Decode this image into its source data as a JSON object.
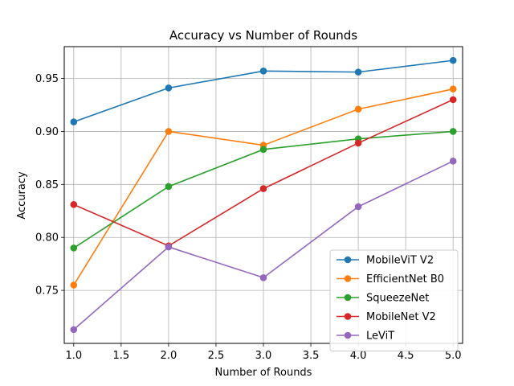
{
  "chart_data": {
    "type": "line",
    "title": "Accuracy vs Number of Rounds",
    "xlabel": "Number of Rounds",
    "ylabel": "Accuracy",
    "xlim": [
      0.9,
      5.1
    ],
    "ylim": [
      0.7,
      0.98
    ],
    "xticks": [
      1.0,
      1.5,
      2.0,
      2.5,
      3.0,
      3.5,
      4.0,
      4.5,
      5.0
    ],
    "xtick_labels": [
      "1.0",
      "1.5",
      "2.0",
      "2.5",
      "3.0",
      "3.5",
      "4.0",
      "4.5",
      "5.0"
    ],
    "yticks": [
      0.75,
      0.8,
      0.85,
      0.9,
      0.95
    ],
    "ytick_labels": [
      "0.75",
      "0.80",
      "0.85",
      "0.90",
      "0.95"
    ],
    "grid": true,
    "legend_position": "lower-right",
    "x": [
      1,
      2,
      3,
      4,
      5
    ],
    "series": [
      {
        "name": "MobileViT V2",
        "color": "#1f77b4",
        "values": [
          0.909,
          0.941,
          0.957,
          0.956,
          0.967
        ]
      },
      {
        "name": "EfficientNet B0",
        "color": "#ff7f0e",
        "values": [
          0.755,
          0.9,
          0.887,
          0.921,
          0.94
        ]
      },
      {
        "name": "SqueezeNet",
        "color": "#2ca02c",
        "values": [
          0.79,
          0.848,
          0.883,
          0.893,
          0.9
        ]
      },
      {
        "name": "MobileNet V2",
        "color": "#d62728",
        "values": [
          0.831,
          0.792,
          0.846,
          0.889,
          0.93
        ]
      },
      {
        "name": "LeViT",
        "color": "#9467bd",
        "values": [
          0.713,
          0.791,
          0.762,
          0.829,
          0.872
        ]
      }
    ]
  }
}
